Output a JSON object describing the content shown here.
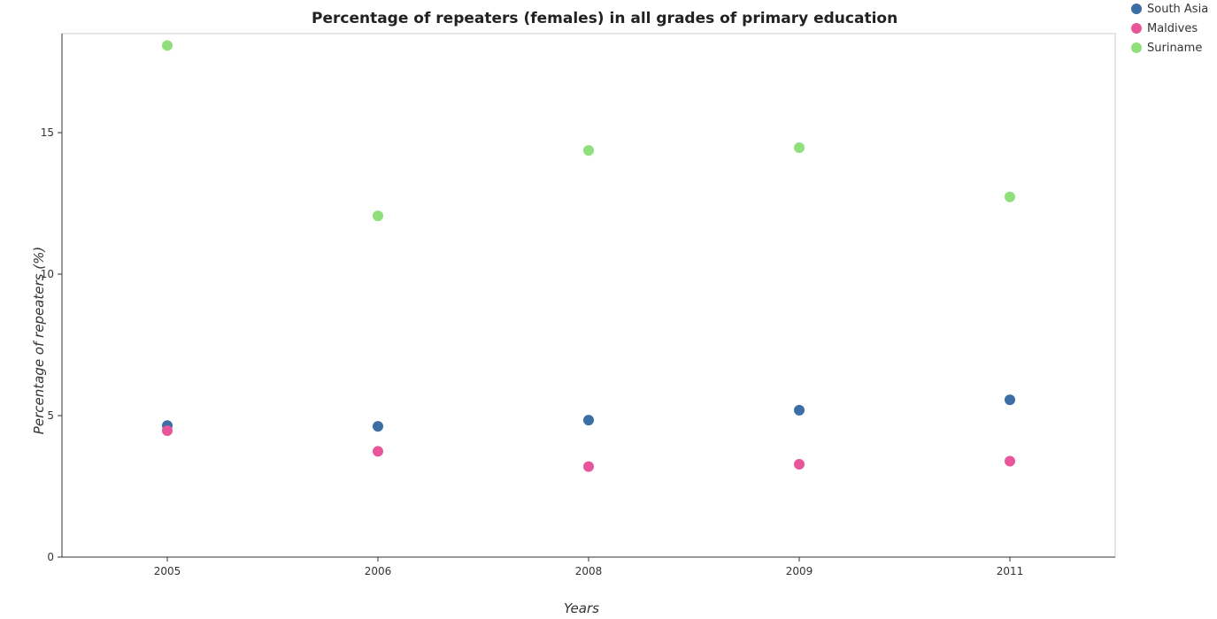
{
  "chart_data": {
    "type": "scatter",
    "title": "Percentage of repeaters (females) in all grades of primary education",
    "xlabel": "Years",
    "ylabel": "Percentage of repeaters (%)",
    "categories": [
      "2005",
      "2006",
      "2008",
      "2009",
      "2011"
    ],
    "ylim": [
      0,
      18.5
    ],
    "yticks": [
      0,
      5,
      10,
      15
    ],
    "grid": false,
    "legend_position": "top-right",
    "series": [
      {
        "name": "South Asia",
        "color": "#3a6ea5",
        "values": [
          4.65,
          4.62,
          4.84,
          5.19,
          5.56
        ]
      },
      {
        "name": "Maldives",
        "color": "#e8559a",
        "values": [
          4.47,
          3.74,
          3.2,
          3.28,
          3.39
        ]
      },
      {
        "name": "Suriname",
        "color": "#8fe07a",
        "values": [
          18.08,
          12.06,
          14.37,
          14.47,
          12.73
        ]
      }
    ]
  }
}
